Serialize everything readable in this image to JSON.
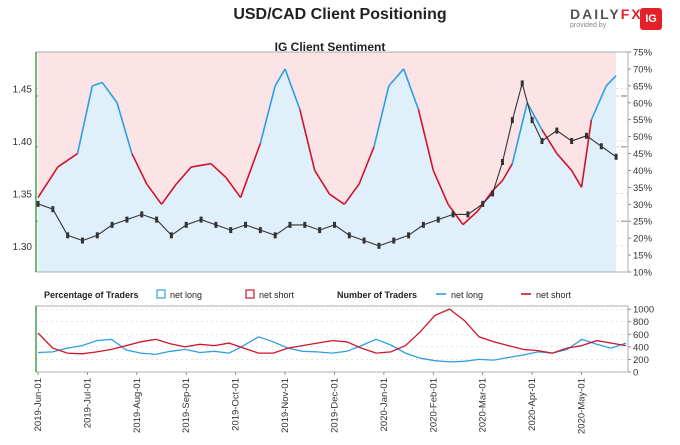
{
  "header": {
    "title": "USD/CAD Client Positioning",
    "logo_word_a": "DAILY",
    "logo_word_b": "FX",
    "logo_sub": "provided by",
    "logo_badge": "IG"
  },
  "colors": {
    "net_long": "#2e9fe0",
    "net_short": "#d0142c",
    "long_fill": "#dff0fb",
    "short_fill": "#fbe3e6",
    "price": "#333333",
    "grid": "#c8c8c8",
    "axis_green": "#3a9a3a"
  },
  "chart_data": [
    {
      "type": "line",
      "title": "IG Client Sentiment",
      "x_tick_labels": [
        "2019-Jun-01",
        "2019-Jul-01",
        "2019-Aug-01",
        "2019-Sep-01",
        "2019-Oct-01",
        "2019-Nov-01",
        "2019-Dec-01",
        "2020-Jan-01",
        "2020-Feb-01",
        "2020-Mar-01",
        "2020-Apr-01",
        "2020-May-01"
      ],
      "y_left_ticks": [
        1.3,
        1.35,
        1.4,
        1.45
      ],
      "y_left_range": [
        1.275,
        1.485
      ],
      "y_right_ticks": [
        "10%",
        "15%",
        "20%",
        "25%",
        "30%",
        "35%",
        "40%",
        "45%",
        "50%",
        "55%",
        "60%",
        "65%",
        "70%",
        "75%"
      ],
      "y_right_range": [
        10,
        75
      ],
      "price_series": {
        "name": "USD/CAD",
        "x_month": [
          0,
          0.3,
          0.6,
          0.9,
          1.2,
          1.5,
          1.8,
          2.1,
          2.4,
          2.7,
          3.0,
          3.3,
          3.6,
          3.9,
          4.2,
          4.5,
          4.8,
          5.1,
          5.4,
          5.7,
          6.0,
          6.3,
          6.6,
          6.9,
          7.2,
          7.5,
          7.8,
          8.1,
          8.4,
          8.7,
          9.0,
          9.2,
          9.4,
          9.6,
          9.8,
          10.0,
          10.2,
          10.5,
          10.8,
          11.1,
          11.4,
          11.7
        ],
        "close": [
          1.34,
          1.335,
          1.31,
          1.305,
          1.31,
          1.32,
          1.325,
          1.33,
          1.325,
          1.31,
          1.32,
          1.325,
          1.32,
          1.315,
          1.32,
          1.315,
          1.31,
          1.32,
          1.32,
          1.315,
          1.32,
          1.31,
          1.305,
          1.3,
          1.305,
          1.31,
          1.32,
          1.325,
          1.33,
          1.33,
          1.34,
          1.35,
          1.38,
          1.42,
          1.455,
          1.42,
          1.4,
          1.41,
          1.4,
          1.405,
          1.395,
          1.385
        ]
      },
      "net_long_pct": {
        "name": "net long",
        "x_month": [
          0,
          0.4,
          0.8,
          1.1,
          1.3,
          1.6,
          1.9,
          2.2,
          2.5,
          2.8,
          3.1,
          3.5,
          3.8,
          4.1,
          4.5,
          4.8,
          5.0,
          5.3,
          5.6,
          5.9,
          6.2,
          6.5,
          6.8,
          7.1,
          7.4,
          7.7,
          8.0,
          8.3,
          8.6,
          8.9,
          9.2,
          9.4,
          9.6,
          9.9,
          10.2,
          10.5,
          10.8,
          11.0,
          11.2,
          11.5,
          11.7
        ],
        "values": [
          32,
          41,
          45,
          65,
          66,
          60,
          45,
          36,
          30,
          36,
          41,
          42,
          38,
          32,
          48,
          65,
          70,
          58,
          40,
          33,
          30,
          36,
          47,
          65,
          70,
          58,
          40,
          30,
          24,
          28,
          34,
          37,
          42,
          60,
          52,
          45,
          40,
          35,
          55,
          65,
          68
        ]
      },
      "hlines_pct": [
        25,
        47,
        62
      ]
    },
    {
      "type": "line",
      "title": "Number of Traders",
      "legend_left_label": "Percentage of Traders",
      "series": [
        {
          "name": "net long",
          "color_key": "net_long",
          "values": [
            310,
            320,
            380,
            420,
            500,
            520,
            350,
            300,
            280,
            330,
            360,
            310,
            330,
            300,
            420,
            560,
            480,
            380,
            330,
            320,
            300,
            330,
            420,
            520,
            430,
            300,
            220,
            180,
            160,
            170,
            200,
            190,
            230,
            270,
            320,
            300,
            360,
            520,
            440,
            380,
            460
          ]
        },
        {
          "name": "net short",
          "color_key": "net_short",
          "values": [
            620,
            380,
            300,
            290,
            320,
            360,
            420,
            480,
            520,
            450,
            400,
            440,
            420,
            460,
            380,
            300,
            300,
            380,
            420,
            460,
            500,
            480,
            380,
            300,
            320,
            420,
            640,
            900,
            1000,
            820,
            560,
            480,
            420,
            360,
            340,
            300,
            380,
            420,
            500,
            460,
            420
          ]
        }
      ],
      "y_ticks": [
        0,
        200,
        400,
        600,
        800,
        1000
      ],
      "y_range": [
        0,
        1050
      ]
    }
  ],
  "legend": {
    "pct_label": "Percentage of Traders",
    "pct_long": "net long",
    "pct_short": "net short",
    "num_label": "Number of Traders",
    "num_long": "net long",
    "num_short": "net short"
  }
}
